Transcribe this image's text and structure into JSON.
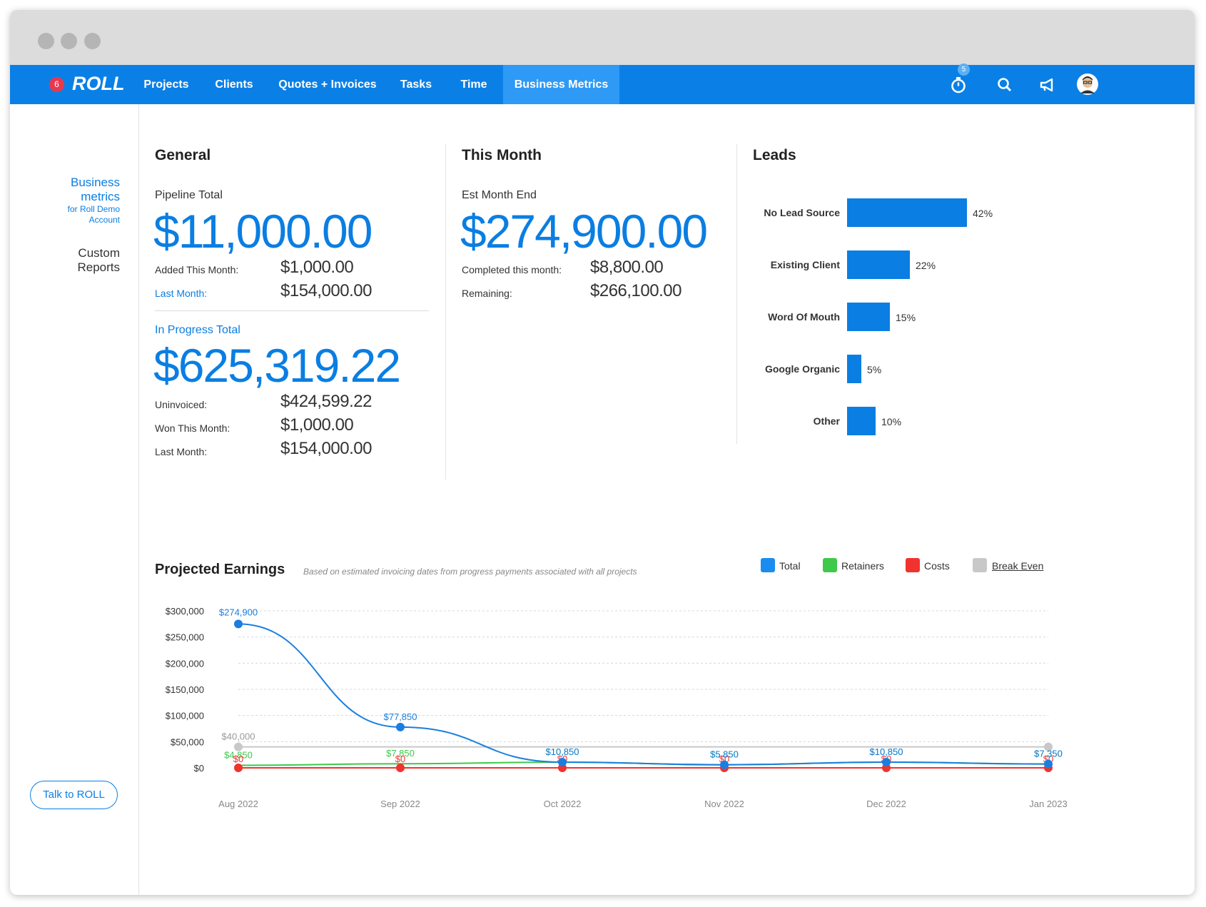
{
  "nav": {
    "badge_count": "6",
    "logo": "ROLL",
    "items": [
      {
        "label": "Projects",
        "active": false
      },
      {
        "label": "Clients",
        "active": false
      },
      {
        "label": "Quotes + Invoices",
        "active": false
      },
      {
        "label": "Tasks",
        "active": false
      },
      {
        "label": "Time",
        "active": false
      },
      {
        "label": "Business Metrics",
        "active": true
      }
    ],
    "timer_badge": "5",
    "icons": [
      "timer-icon",
      "search-icon",
      "megaphone-icon",
      "avatar"
    ]
  },
  "sidebar": {
    "business_metrics_l1": "Business",
    "business_metrics_l2": "metrics",
    "business_metrics_sub1": "for Roll Demo",
    "business_metrics_sub2": "Account",
    "custom_reports_l1": "Custom",
    "custom_reports_l2": "Reports",
    "talk_button": "Talk to ROLL"
  },
  "general": {
    "title": "General",
    "pipeline_label": "Pipeline Total",
    "pipeline_total": "$11,000.00",
    "added_label": "Added This Month:",
    "added_value": "$1,000.00",
    "last_month_label": "Last Month:",
    "last_month_value": "$154,000.00",
    "in_progress_label": "In Progress Total",
    "in_progress_total": "$625,319.22",
    "uninvoiced_label": "Uninvoiced:",
    "uninvoiced_value": "$424,599.22",
    "won_label": "Won This Month:",
    "won_value": "$1,000.00",
    "last_month2_label": "Last Month:",
    "last_month2_value": "$154,000.00"
  },
  "this_month": {
    "title": "This Month",
    "est_label": "Est Month End",
    "est_total": "$274,900.00",
    "completed_label": "Completed this month:",
    "completed_value": "$8,800.00",
    "remaining_label": "Remaining:",
    "remaining_value": "$266,100.00"
  },
  "leads": {
    "title": "Leads",
    "items": [
      {
        "label": "No Lead Source",
        "pct": 42,
        "text": "42%"
      },
      {
        "label": "Existing Client",
        "pct": 22,
        "text": "22%"
      },
      {
        "label": "Word Of Mouth",
        "pct": 15,
        "text": "15%"
      },
      {
        "label": "Google Organic",
        "pct": 5,
        "text": "5%"
      },
      {
        "label": "Other",
        "pct": 10,
        "text": "10%"
      }
    ]
  },
  "projected": {
    "title": "Projected Earnings",
    "subtitle": "Based on estimated invoicing dates from progress payments associated with all projects",
    "legend": [
      {
        "label": "Total",
        "color": "#1a8cf0"
      },
      {
        "label": "Retainers",
        "color": "#3ec94a"
      },
      {
        "label": "Costs",
        "color": "#f0332e"
      },
      {
        "label": "Break Even",
        "color": "#c8c8c8"
      }
    ]
  },
  "chart_data": {
    "type": "line",
    "categories": [
      "Aug 2022",
      "Sep 2022",
      "Oct 2022",
      "Nov 2022",
      "Dec 2022",
      "Jan 2023"
    ],
    "ylim": [
      0,
      300000
    ],
    "yticks": [
      "$0",
      "$50,000",
      "$100,000",
      "$150,000",
      "$200,000",
      "$250,000",
      "$300,000"
    ],
    "series": [
      {
        "name": "Total",
        "color": "#1a7ee0",
        "values": [
          274900,
          77850,
          10850,
          5850,
          10850,
          7350
        ],
        "labels": [
          "$274,900",
          "$77,850",
          "$10,850",
          "$5,850",
          "$10,850",
          "$7,350"
        ]
      },
      {
        "name": "Retainers",
        "color": "#3ec94a",
        "values": [
          4850,
          7850,
          10850,
          5850,
          10850,
          7350
        ],
        "labels": [
          "$4,850",
          "$7,850",
          "$10,850",
          "$5,850",
          "$10,850",
          "$7,350"
        ]
      },
      {
        "name": "Costs",
        "color": "#f0332e",
        "values": [
          0,
          0,
          0,
          0,
          0,
          0
        ],
        "labels": [
          "$0",
          "$0",
          "$0",
          "$0",
          "$0",
          "$0"
        ]
      },
      {
        "name": "Break Even",
        "color": "#c8c8c8",
        "values": [
          40000,
          40000,
          40000,
          40000,
          40000,
          40000
        ],
        "labels": [
          "$40,000",
          "",
          "",
          "",
          "",
          ""
        ]
      }
    ]
  }
}
